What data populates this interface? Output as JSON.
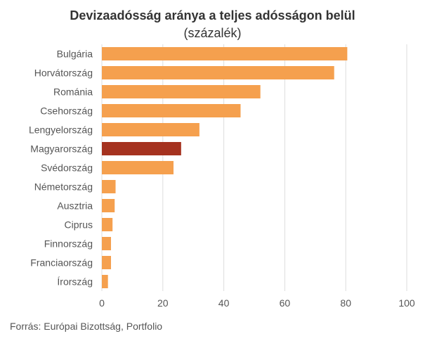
{
  "chart_data": {
    "type": "bar",
    "orientation": "horizontal",
    "title": "Devizaadósság aránya a teljes adósságon belül",
    "subtitle": "(százalék)",
    "categories": [
      "Bulgária",
      "Horvátország",
      "Románia",
      "Csehország",
      "Lengyelország",
      "Magyarország",
      "Svédország",
      "Németország",
      "Ausztria",
      "Ciprus",
      "Finnország",
      "Franciaország",
      "Írország"
    ],
    "values": [
      80.5,
      76.2,
      52.0,
      45.5,
      32.0,
      26.0,
      23.5,
      4.5,
      4.2,
      3.5,
      3.0,
      3.0,
      2.0
    ],
    "highlight": "Magyarország",
    "colors": {
      "default": "#f5a04e",
      "highlight": "#a5321f"
    },
    "xlim": [
      0,
      100
    ],
    "xticks": [
      0,
      20,
      40,
      60,
      80,
      100
    ],
    "grid": true
  },
  "source": "Forrás: Európai Bizottság, Portfolio"
}
